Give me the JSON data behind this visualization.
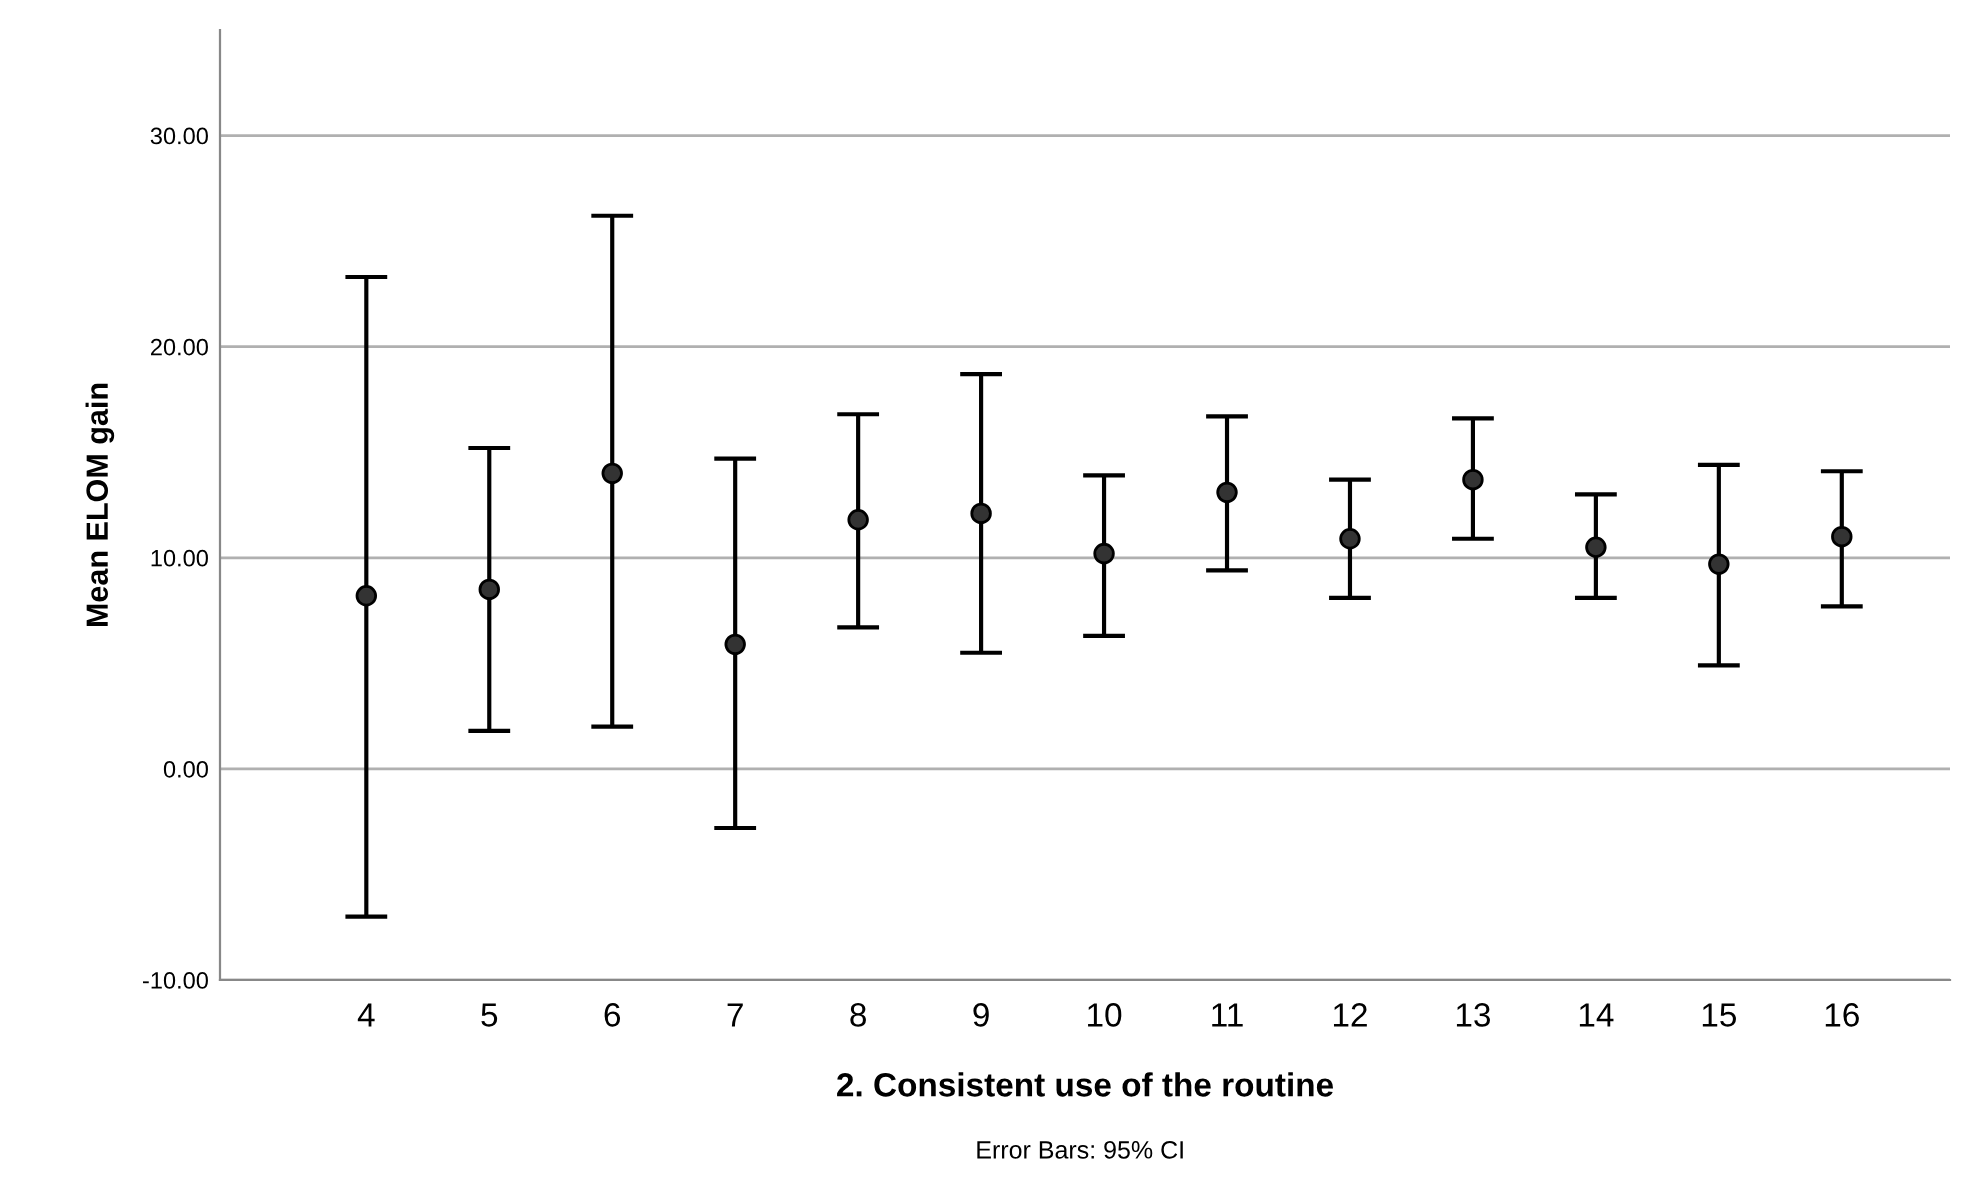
{
  "chart_data": {
    "type": "scatter",
    "xlabel": "2. Consistent use of the routine",
    "ylabel": "Mean ELOM gain",
    "categories": [
      "4",
      "5",
      "6",
      "7",
      "8",
      "9",
      "10",
      "11",
      "12",
      "13",
      "14",
      "15",
      "16"
    ],
    "series": [
      {
        "color": "#333333",
        "values": [
          8.2,
          8.5,
          14.0,
          5.9,
          11.8,
          12.1,
          10.2,
          13.1,
          10.9,
          13.7,
          10.5,
          9.7,
          11.0
        ],
        "errors": [
          [
            -7.0,
            23.3
          ],
          [
            1.8,
            15.2
          ],
          [
            2.0,
            26.2
          ],
          [
            -2.8,
            14.7
          ],
          [
            6.7,
            16.8
          ],
          [
            5.5,
            18.7
          ],
          [
            6.3,
            13.9
          ],
          [
            9.4,
            16.7
          ],
          [
            8.1,
            13.7
          ],
          [
            10.9,
            16.6
          ],
          [
            8.1,
            13.0
          ],
          [
            4.9,
            14.4
          ],
          [
            7.7,
            14.1
          ]
        ]
      }
    ],
    "ylim": [
      -10,
      35
    ],
    "yticks": [
      {
        "value": -10,
        "label": "-10.00"
      },
      {
        "value": 0,
        "label": "0.00"
      },
      {
        "value": 10,
        "label": "10.00"
      },
      {
        "value": 20,
        "label": "20.00"
      },
      {
        "value": 30,
        "label": "30.00"
      }
    ],
    "grid": "y",
    "marker": "circle",
    "legend": false,
    "annotations": [
      "Error Bars: 95% CI"
    ]
  }
}
